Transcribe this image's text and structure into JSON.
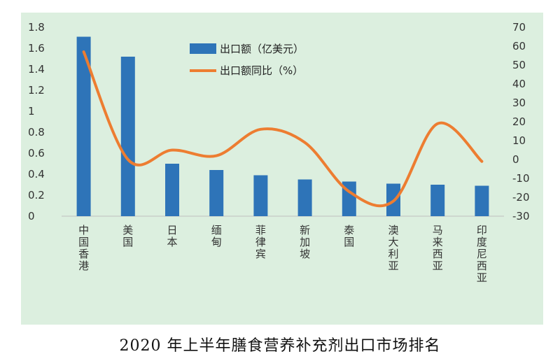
{
  "caption": "2020 年上半年膳食营养补充剂出口市场排名",
  "chart_data": {
    "type": "bar",
    "categories": [
      "中国香港",
      "美国",
      "日本",
      "缅甸",
      "菲律宾",
      "新加坡",
      "泰国",
      "澳大利亚",
      "马来西亚",
      "印度尼西亚"
    ],
    "series": [
      {
        "name": "出口额（亿美元）",
        "type": "bar",
        "axis": "left",
        "values": [
          1.71,
          1.52,
          0.5,
          0.44,
          0.39,
          0.35,
          0.33,
          0.31,
          0.3,
          0.29
        ]
      },
      {
        "name": "出口额同比（%）",
        "type": "line",
        "axis": "right",
        "values": [
          57,
          0,
          5,
          2,
          16,
          9,
          -17,
          -22,
          19,
          -1
        ]
      }
    ],
    "y_left": {
      "min": 0,
      "max": 1.8,
      "ticks": [
        "0",
        "0.2",
        "0.4",
        "0.6",
        "0.8",
        "1",
        "1.2",
        "1.4",
        "1.6",
        "1.8"
      ]
    },
    "y_right": {
      "min": -30,
      "max": 70,
      "ticks": [
        "-30",
        "-20",
        "-10",
        "0",
        "10",
        "20",
        "30",
        "40",
        "50",
        "60",
        "70"
      ]
    },
    "legend_position": "top-center",
    "grid": false,
    "colors": {
      "bar": "#2e74b8",
      "line": "#ed7d31",
      "background": "#dcefdf"
    }
  }
}
